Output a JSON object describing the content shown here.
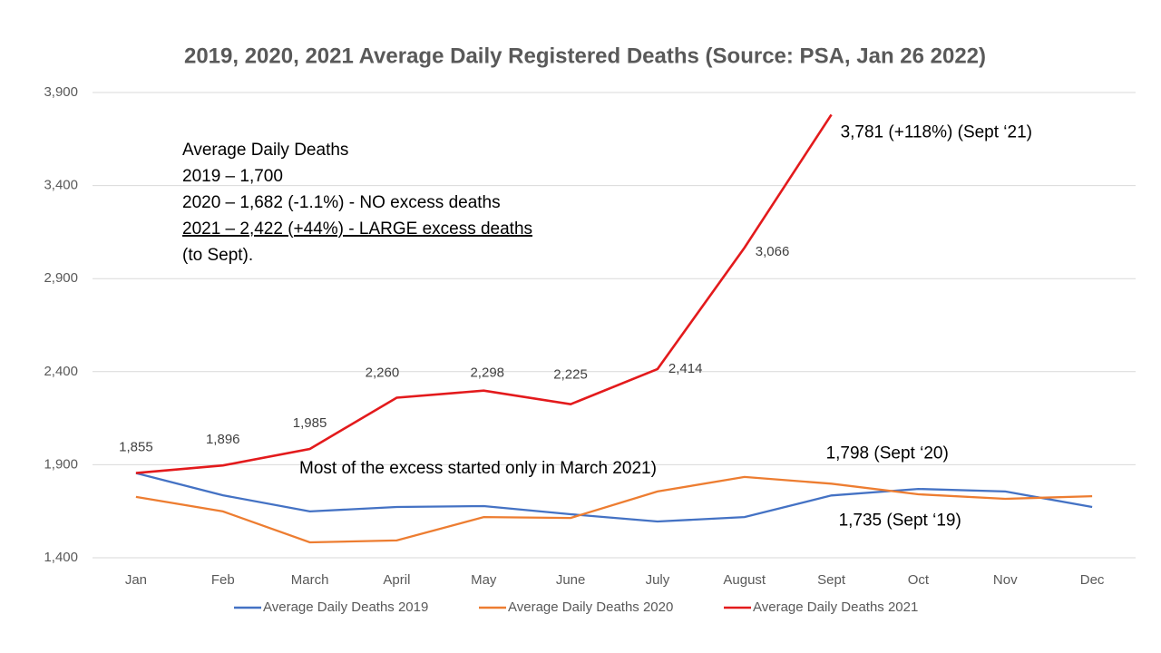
{
  "chart_data": {
    "type": "line",
    "title": "2019, 2020, 2021 Average Daily Registered Deaths (Source: PSA, Jan 26 2022)",
    "categories": [
      "Jan",
      "Feb",
      "March",
      "April",
      "May",
      "June",
      "July",
      "August",
      "Sept",
      "Oct",
      "Nov",
      "Dec"
    ],
    "series": [
      {
        "name": "Average Daily Deaths 2019",
        "color": "#4472c4",
        "values": [
          1855,
          1736,
          1649,
          1673,
          1678,
          1634,
          1595,
          1619,
          1735,
          1770,
          1756,
          1673
        ],
        "value_labels": [
          null,
          null,
          null,
          null,
          null,
          null,
          null,
          null,
          "1,735 (Sept ‘19)",
          null,
          null,
          null
        ]
      },
      {
        "name": "Average Daily Deaths 2020",
        "color": "#ed7d31",
        "values": [
          1727,
          1649,
          1483,
          1493,
          1619,
          1614,
          1756,
          1834,
          1798,
          1741,
          1717,
          1731
        ],
        "value_labels": [
          null,
          null,
          null,
          null,
          null,
          null,
          null,
          null,
          "1,798 (Sept ‘20)",
          null,
          null,
          null
        ]
      },
      {
        "name": "Average Daily Deaths 2021",
        "color": "#e31a1c",
        "values": [
          1855,
          1896,
          1985,
          2260,
          2298,
          2225,
          2414,
          3066,
          3781,
          null,
          null,
          null
        ],
        "value_labels": [
          "1,855",
          "1,896",
          "1,985",
          "2,260",
          "2,298",
          "2,225",
          "2,414",
          "3,066",
          "3,781 (+118%) (Sept ‘21)",
          null,
          null,
          null
        ]
      }
    ],
    "ylim": [
      1400,
      3900
    ],
    "yticks": [
      {
        "value": 1400,
        "label": "1,400"
      },
      {
        "value": 1900,
        "label": "1,900"
      },
      {
        "value": 2400,
        "label": "2,400"
      },
      {
        "value": 2900,
        "label": "2,900"
      },
      {
        "value": 3400,
        "label": "3,400"
      },
      {
        "value": 3900,
        "label": "3,900"
      }
    ],
    "grid": true,
    "legend": "bottom",
    "annotations": {
      "textbox": [
        "Average Daily Deaths",
        "2019 – 1,700",
        "2020 – 1,682 (-1.1%) - NO excess deaths",
        "2021 – 2,422 (+44%)  - LARGE excess deaths",
        "(to Sept)."
      ],
      "note": "Most of the excess started only in March 2021)"
    }
  }
}
